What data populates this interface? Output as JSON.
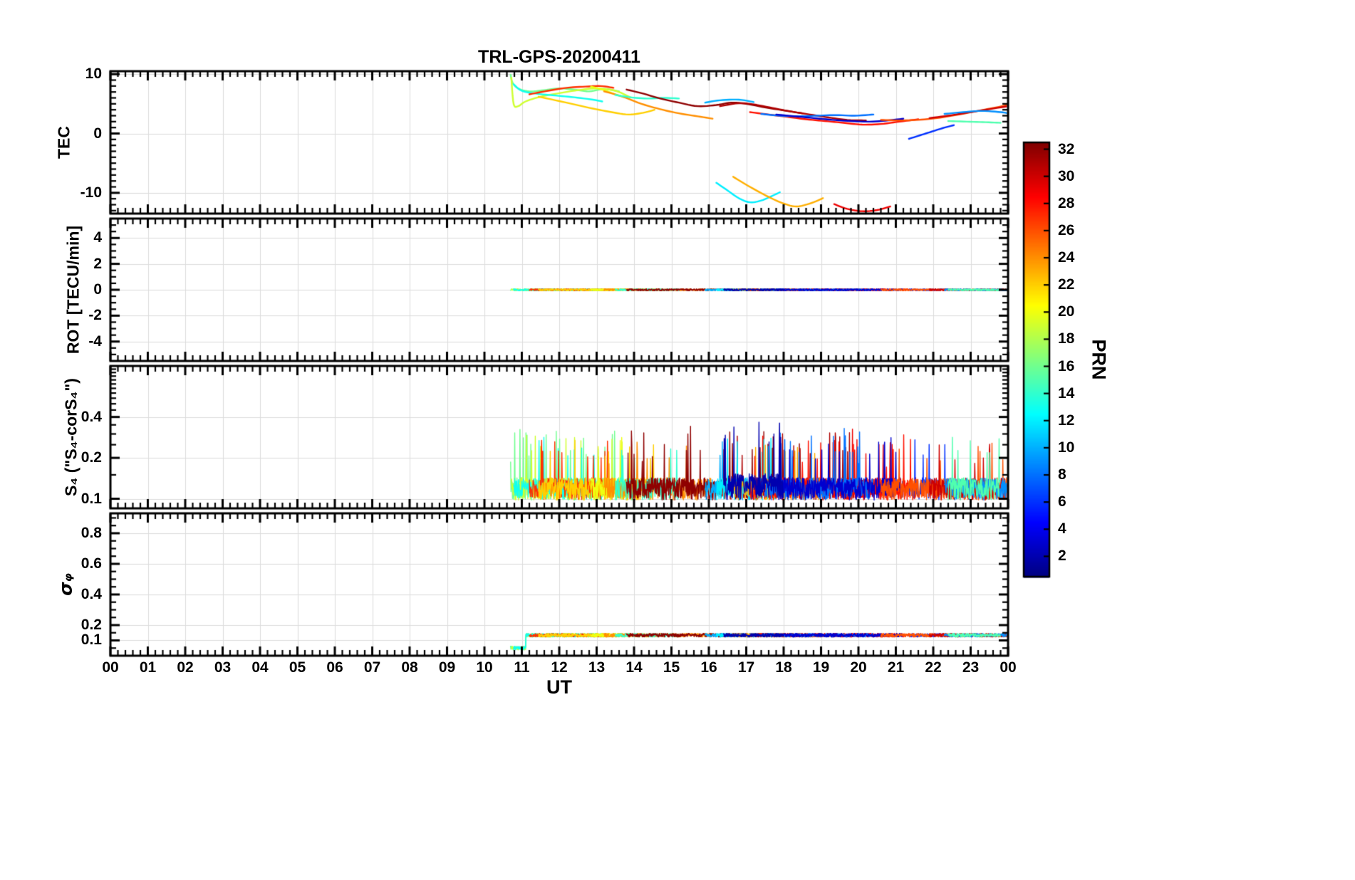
{
  "chart_data": {
    "type": "line",
    "title": "TRL-GPS-20200411",
    "xlabel": "UT",
    "xlim": [
      0,
      24
    ],
    "x_major": 1,
    "x_minor": 0.2,
    "x_tick_labels": [
      "00",
      "01",
      "02",
      "03",
      "04",
      "05",
      "06",
      "07",
      "08",
      "09",
      "10",
      "11",
      "12",
      "13",
      "14",
      "15",
      "16",
      "17",
      "18",
      "19",
      "20",
      "21",
      "22",
      "23",
      "00"
    ],
    "grid": true,
    "grid_color": "#dcdcdc",
    "axis_color": "#000000",
    "colorbar": {
      "label": "PRN",
      "cmin": 0.5,
      "cmax": 32.5,
      "ticks": [
        2,
        4,
        6,
        8,
        10,
        12,
        14,
        16,
        18,
        20,
        22,
        24,
        26,
        28,
        30,
        32
      ],
      "colormap": "jet"
    },
    "panels": [
      {
        "id": "tec",
        "ylabel": "TEC",
        "scale": "linear",
        "ylim": [
          -13.5,
          10.5
        ],
        "yticks": [
          -10,
          0,
          10
        ],
        "y_minor": 1
      },
      {
        "id": "rot",
        "ylabel": "ROT [TECU/min]",
        "scale": "linear",
        "ylim": [
          -5.5,
          5.5
        ],
        "yticks": [
          -4,
          -2,
          0,
          2,
          4
        ],
        "y_minor": 0.5
      },
      {
        "id": "s4",
        "ylabel": "S₄ (\"S₄-corS₄\")",
        "scale": "log2",
        "ylim": [
          0.085,
          0.95
        ],
        "yticks": [
          0.1,
          0.2,
          0.4
        ],
        "y_minor": 0.05
      },
      {
        "id": "sigma_phi",
        "ylabel": "σᵩ",
        "scale": "linear",
        "ylim": [
          0,
          0.93
        ],
        "yticks": [
          0.1,
          0.2,
          0.4,
          0.6,
          0.8
        ],
        "y_minor": 0.05
      }
    ],
    "noise_defaults": {
      "rot": {
        "base": 0,
        "amp": 0.14
      },
      "s4": {
        "base": 0.098,
        "amp": 0.045,
        "spike": 0.16,
        "spike_p": 0.03
      },
      "sig": {
        "base": 0.134,
        "amp": 0.022
      }
    },
    "tracks": [
      {
        "prn": 16,
        "tec": [
          [
            10.7,
            9.9
          ],
          [
            10.75,
            8.6
          ],
          [
            10.9,
            7.6
          ],
          [
            11.2,
            7.1
          ],
          [
            11.6,
            7.3
          ],
          [
            12.0,
            7.6
          ],
          [
            12.4,
            7.4
          ],
          [
            12.8,
            7.1
          ],
          [
            13.2,
            7.5
          ],
          [
            13.6,
            7.1
          ]
        ],
        "s4": {
          "spike": 0.2,
          "spike_p": 0.05
        },
        "sig": {
          "pre": {
            "until": 11.1,
            "base": 0.05
          }
        }
      },
      {
        "prn": 19,
        "tec": [
          [
            10.72,
            9.4
          ],
          [
            10.78,
            5.0
          ],
          [
            10.9,
            4.6
          ],
          [
            11.1,
            5.4
          ],
          [
            11.5,
            6.2
          ],
          [
            12.0,
            6.8
          ],
          [
            12.5,
            7.3
          ],
          [
            13.0,
            7.6
          ],
          [
            13.5,
            7.2
          ],
          [
            13.9,
            6.1
          ]
        ],
        "sig": {
          "pre": {
            "until": 11.1,
            "base": 0.05
          }
        }
      },
      {
        "prn": 13,
        "tec": [
          [
            10.78,
            8.3
          ],
          [
            11.0,
            7.2
          ],
          [
            11.4,
            6.7
          ],
          [
            11.9,
            6.4
          ],
          [
            12.4,
            6.1
          ],
          [
            12.9,
            5.7
          ],
          [
            13.15,
            5.4
          ]
        ],
        "sig": {
          "pre": {
            "until": 11.1,
            "base": 0.05
          }
        }
      },
      {
        "prn": 27,
        "tec": [
          [
            11.2,
            6.6
          ],
          [
            11.7,
            7.2
          ],
          [
            12.2,
            7.7
          ],
          [
            12.7,
            7.9
          ],
          [
            13.1,
            8.0
          ],
          [
            13.45,
            7.7
          ]
        ]
      },
      {
        "prn": 22,
        "tec": [
          [
            11.45,
            6.2
          ],
          [
            11.9,
            5.6
          ],
          [
            12.4,
            4.9
          ],
          [
            12.9,
            4.2
          ],
          [
            13.4,
            3.6
          ],
          [
            13.85,
            3.2
          ],
          [
            14.25,
            3.5
          ],
          [
            14.55,
            4.0
          ]
        ]
      },
      {
        "prn": 20,
        "tec": [
          [
            12.85,
            7.9
          ],
          [
            13.15,
            7.4
          ],
          [
            13.45,
            6.7
          ],
          [
            13.75,
            6.1
          ]
        ]
      },
      {
        "prn": 24,
        "tec": [
          [
            13.2,
            7.1
          ],
          [
            13.7,
            6.2
          ],
          [
            14.2,
            5.0
          ],
          [
            14.7,
            4.1
          ],
          [
            15.2,
            3.4
          ],
          [
            15.7,
            2.9
          ],
          [
            16.1,
            2.5
          ]
        ]
      },
      {
        "prn": 14,
        "tec": [
          [
            13.5,
            6.5
          ],
          [
            13.9,
            6.1
          ],
          [
            14.35,
            5.9
          ],
          [
            14.8,
            6.0
          ],
          [
            15.2,
            5.9
          ]
        ]
      },
      {
        "prn": 32,
        "tec": [
          [
            13.8,
            7.4
          ],
          [
            14.2,
            6.8
          ],
          [
            14.7,
            5.9
          ],
          [
            15.2,
            5.2
          ],
          [
            15.7,
            4.6
          ],
          [
            16.2,
            4.8
          ],
          [
            16.6,
            5.2
          ],
          [
            17.0,
            5.0
          ],
          [
            17.5,
            4.4
          ],
          [
            18.0,
            3.9
          ],
          [
            18.5,
            3.4
          ]
        ],
        "s4": {
          "spike": 0.2,
          "spike_p": 0.05
        }
      },
      {
        "prn": 31,
        "tec": [
          [
            16.3,
            4.6
          ],
          [
            16.8,
            5.1
          ],
          [
            17.2,
            4.9
          ],
          [
            17.7,
            4.3
          ],
          [
            18.2,
            3.7
          ],
          [
            18.7,
            3.2
          ],
          [
            19.2,
            2.7
          ],
          [
            19.7,
            2.3
          ],
          [
            20.2,
            2.2
          ]
        ],
        "s4": {
          "spike": 0.2,
          "spike_p": 0.05
        }
      },
      {
        "prn": 10,
        "tec": [
          [
            15.9,
            5.2
          ],
          [
            16.3,
            5.6
          ],
          [
            16.8,
            5.7
          ],
          [
            17.2,
            5.3
          ]
        ]
      },
      {
        "prn": 12,
        "tec": [
          [
            16.2,
            -8.3
          ],
          [
            16.5,
            -9.6
          ],
          [
            16.8,
            -10.9
          ],
          [
            17.1,
            -11.6
          ],
          [
            17.4,
            -11.3
          ],
          [
            17.7,
            -10.5
          ],
          [
            17.9,
            -9.9
          ]
        ],
        "s4": {
          "spike": 0.2,
          "spike_p": 0.05
        }
      },
      {
        "prn": 23,
        "tec": [
          [
            16.65,
            -7.3
          ],
          [
            17.1,
            -9.0
          ],
          [
            17.6,
            -10.7
          ],
          [
            18.0,
            -11.8
          ],
          [
            18.35,
            -12.3
          ],
          [
            18.75,
            -11.7
          ],
          [
            19.05,
            -10.9
          ]
        ]
      },
      {
        "prn": 29,
        "tec": [
          [
            19.35,
            -11.9
          ],
          [
            19.7,
            -12.7
          ],
          [
            20.1,
            -13.1
          ],
          [
            20.5,
            -12.9
          ],
          [
            20.85,
            -12.3
          ]
        ],
        "s4": {
          "spike": 0.22,
          "spike_p": 0.05
        }
      },
      {
        "prn": 28,
        "tec": [
          [
            17.1,
            3.6
          ],
          [
            17.6,
            3.2
          ],
          [
            18.1,
            2.8
          ],
          [
            18.6,
            2.4
          ],
          [
            19.1,
            2.1
          ],
          [
            19.6,
            1.8
          ],
          [
            20.1,
            1.5
          ],
          [
            20.6,
            1.6
          ],
          [
            21.1,
            2.0
          ],
          [
            21.6,
            2.4
          ]
        ]
      },
      {
        "prn": 8,
        "tec": [
          [
            17.4,
            3.3
          ],
          [
            17.9,
            3.0
          ],
          [
            18.4,
            2.9
          ],
          [
            18.9,
            3.0
          ],
          [
            19.4,
            3.1
          ],
          [
            19.9,
            3.0
          ],
          [
            20.4,
            3.2
          ]
        ],
        "s4": {
          "spike": 0.2,
          "spike_p": 0.04
        }
      },
      {
        "prn": 3,
        "tec": [
          [
            17.8,
            3.2
          ],
          [
            18.3,
            2.9
          ],
          [
            18.8,
            2.6
          ],
          [
            19.3,
            2.3
          ],
          [
            19.8,
            2.1
          ],
          [
            20.3,
            2.0
          ],
          [
            20.8,
            2.2
          ],
          [
            21.2,
            2.5
          ]
        ]
      },
      {
        "prn": 2,
        "range": [
          16.4,
          18.0
        ],
        "s4": {
          "spike": 0.26,
          "spike_p": 0.06,
          "amp": 0.055
        }
      },
      {
        "prn": 6,
        "tec": [
          [
            21.35,
            -0.9
          ],
          [
            21.65,
            -0.3
          ],
          [
            21.95,
            0.3
          ],
          [
            22.25,
            0.9
          ],
          [
            22.55,
            1.4
          ]
        ]
      },
      {
        "prn": 26,
        "tec": [
          [
            20.6,
            2.3
          ],
          [
            21.1,
            2.2
          ],
          [
            21.6,
            2.3
          ],
          [
            22.1,
            2.6
          ],
          [
            22.6,
            3.1
          ],
          [
            23.1,
            3.7
          ],
          [
            23.6,
            4.3
          ],
          [
            24.0,
            4.8
          ]
        ]
      },
      {
        "prn": 30,
        "tec": [
          [
            21.9,
            2.6
          ],
          [
            22.4,
            3.0
          ],
          [
            22.9,
            3.5
          ],
          [
            23.4,
            4.0
          ],
          [
            24.0,
            4.6
          ]
        ]
      },
      {
        "prn": 9,
        "tec": [
          [
            22.3,
            3.3
          ],
          [
            22.8,
            3.6
          ],
          [
            23.3,
            3.8
          ],
          [
            23.8,
            3.6
          ],
          [
            24.0,
            3.4
          ]
        ]
      },
      {
        "prn": 15,
        "tec": [
          [
            22.4,
            2.1
          ],
          [
            22.9,
            2.0
          ],
          [
            23.4,
            1.9
          ],
          [
            23.8,
            1.8
          ]
        ]
      }
    ]
  }
}
